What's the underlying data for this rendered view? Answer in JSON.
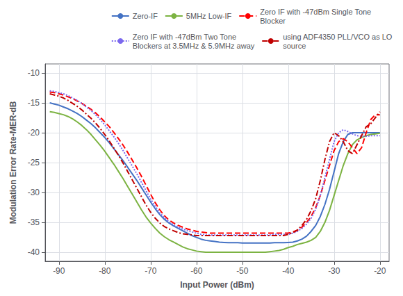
{
  "chart_data": {
    "type": "line",
    "xlabel": "Input Power (dBm)",
    "ylabel": "Modulation Error Rate-MER-dB",
    "xlim": [
      -93,
      -18
    ],
    "ylim": [
      -41.5,
      -8.5
    ],
    "xticks": [
      -90,
      -80,
      -70,
      -60,
      -50,
      -40,
      -30,
      -20
    ],
    "yticks": [
      -40,
      -35,
      -30,
      -25,
      -20,
      -15,
      -10
    ],
    "grid": true,
    "legend": "upper right",
    "x": [
      -92,
      -91,
      -90,
      -89,
      -88,
      -87,
      -86,
      -85,
      -84,
      -83,
      -82,
      -81,
      -80,
      -79,
      -78,
      -77,
      -76,
      -75,
      -74,
      -73,
      -72,
      -71,
      -70,
      -69,
      -68,
      -67,
      -66,
      -65,
      -64,
      -63,
      -62,
      -61,
      -60,
      -59,
      -58,
      -57,
      -56,
      -55,
      -54,
      -53,
      -52,
      -51,
      -50,
      -49,
      -48,
      -47,
      -46,
      -45,
      -44,
      -43,
      -42,
      -41,
      -40,
      -39,
      -38,
      -37,
      -36,
      -35,
      -34,
      -33,
      -32,
      -31,
      -30,
      -29,
      -28,
      -27,
      -26,
      -25,
      -24,
      -23,
      -22,
      -21,
      -20
    ],
    "series": [
      {
        "name": "Zero-IF",
        "color": "#4472C4",
        "line_style": "solid",
        "values": [
          -15.0,
          -15.2,
          -15.4,
          -15.7,
          -16.0,
          -16.4,
          -16.8,
          -17.3,
          -17.9,
          -18.5,
          -19.2,
          -20.0,
          -20.8,
          -21.7,
          -22.7,
          -23.7,
          -24.7,
          -25.8,
          -26.9,
          -28.0,
          -29.2,
          -30.4,
          -31.6,
          -32.7,
          -33.7,
          -34.5,
          -35.1,
          -35.6,
          -36.0,
          -36.4,
          -36.8,
          -37.2,
          -37.5,
          -37.8,
          -38.0,
          -38.1,
          -38.2,
          -38.3,
          -38.35,
          -38.4,
          -38.4,
          -38.4,
          -38.45,
          -38.45,
          -38.45,
          -38.45,
          -38.45,
          -38.45,
          -38.45,
          -38.4,
          -38.4,
          -38.4,
          -38.35,
          -38.3,
          -38.1,
          -37.8,
          -37.3,
          -36.5,
          -35.5,
          -34.0,
          -32.0,
          -29.5,
          -26.5,
          -23.5,
          -21.5,
          -20.3,
          -20.0,
          -20.0,
          -20.0,
          -20.0,
          -20.0,
          -20.0,
          -20.0
        ]
      },
      {
        "name": "5MHz Low-IF",
        "color": "#7CB342",
        "line_style": "solid",
        "values": [
          -16.5,
          -16.6,
          -16.8,
          -17.0,
          -17.3,
          -17.7,
          -18.2,
          -18.8,
          -19.5,
          -20.3,
          -21.2,
          -22.1,
          -23.1,
          -24.2,
          -25.3,
          -26.5,
          -27.7,
          -29.0,
          -30.3,
          -31.6,
          -32.9,
          -34.1,
          -35.1,
          -36.0,
          -36.8,
          -37.4,
          -37.9,
          -38.3,
          -38.7,
          -39.1,
          -39.4,
          -39.6,
          -39.8,
          -39.9,
          -40.0,
          -40.0,
          -40.0,
          -40.0,
          -40.0,
          -40.0,
          -40.0,
          -40.0,
          -40.0,
          -40.0,
          -40.0,
          -40.0,
          -40.0,
          -40.0,
          -39.9,
          -39.8,
          -39.7,
          -39.5,
          -39.2,
          -39.0,
          -38.7,
          -38.5,
          -38.3,
          -38.0,
          -37.5,
          -36.5,
          -35.0,
          -33.0,
          -30.5,
          -28.0,
          -25.5,
          -23.5,
          -22.0,
          -21.2,
          -20.8,
          -20.5,
          -20.3,
          -20.2,
          -20.1
        ]
      },
      {
        "name": "Zero IF with -47dBm Single Tone\nBlocker",
        "color": "#FF0000",
        "line_style": "dashed",
        "values": [
          -13.2,
          -13.3,
          -13.5,
          -13.7,
          -14.0,
          -14.3,
          -14.7,
          -15.1,
          -15.6,
          -16.1,
          -16.7,
          -17.4,
          -18.2,
          -19.0,
          -20.0,
          -21.0,
          -22.1,
          -23.3,
          -24.6,
          -25.9,
          -27.3,
          -28.8,
          -30.3,
          -31.7,
          -32.9,
          -33.9,
          -34.6,
          -35.1,
          -35.5,
          -35.8,
          -36.1,
          -36.3,
          -36.5,
          -36.6,
          -36.7,
          -36.8,
          -36.8,
          -36.8,
          -36.8,
          -36.8,
          -36.8,
          -36.8,
          -36.8,
          -36.8,
          -36.8,
          -36.8,
          -36.8,
          -36.8,
          -36.8,
          -36.8,
          -36.8,
          -36.8,
          -36.8,
          -36.6,
          -36.3,
          -35.8,
          -35.0,
          -34.0,
          -32.5,
          -30.5,
          -28.0,
          -25.5,
          -23.0,
          -21.5,
          -21.0,
          -21.5,
          -22.5,
          -23.5,
          -22.5,
          -20.0,
          -17.8,
          -17.0,
          -17.0
        ]
      },
      {
        "name": "Zero IF with -47dBm Two Tone\nBlockers at 3.5MHz & 5.9MHz away",
        "color": "#7B68EE",
        "line_style": "dotted",
        "values": [
          -13.0,
          -13.1,
          -13.3,
          -13.5,
          -13.8,
          -14.2,
          -14.6,
          -15.1,
          -15.7,
          -16.3,
          -17.0,
          -17.8,
          -18.7,
          -19.7,
          -20.7,
          -21.8,
          -23.0,
          -24.3,
          -25.6,
          -26.9,
          -28.3,
          -29.7,
          -31.1,
          -32.3,
          -33.4,
          -34.2,
          -34.9,
          -35.4,
          -35.8,
          -36.1,
          -36.4,
          -36.6,
          -36.8,
          -37.0,
          -37.1,
          -37.1,
          -37.1,
          -37.1,
          -37.1,
          -37.1,
          -37.1,
          -37.1,
          -37.1,
          -37.1,
          -37.1,
          -37.1,
          -37.1,
          -37.1,
          -37.1,
          -37.0,
          -37.0,
          -37.0,
          -37.0,
          -36.8,
          -36.5,
          -36.0,
          -35.3,
          -34.3,
          -32.8,
          -30.5,
          -27.5,
          -24.5,
          -21.5,
          -20.0,
          -19.5,
          -19.8,
          -20.2,
          -20.5,
          -20.6,
          -20.6,
          -20.5,
          -20.5,
          -20.5
        ]
      },
      {
        "name": "using ADF4350 PLL/VCO as LO\nsource",
        "color": "#C00000",
        "line_style": "dashdot",
        "values": [
          -13.5,
          -13.7,
          -13.9,
          -14.2,
          -14.6,
          -15.1,
          -15.6,
          -16.2,
          -16.9,
          -17.6,
          -18.4,
          -19.3,
          -20.3,
          -21.4,
          -22.6,
          -23.8,
          -25.1,
          -26.5,
          -27.9,
          -29.3,
          -30.7,
          -32.1,
          -33.3,
          -34.3,
          -35.1,
          -35.7,
          -36.1,
          -36.4,
          -36.7,
          -36.9,
          -37.0,
          -37.1,
          -37.2,
          -37.2,
          -37.2,
          -37.2,
          -37.2,
          -37.2,
          -37.2,
          -37.2,
          -37.2,
          -37.2,
          -37.2,
          -37.2,
          -37.2,
          -37.2,
          -37.2,
          -37.2,
          -37.2,
          -37.2,
          -37.2,
          -37.2,
          -37.0,
          -36.7,
          -36.3,
          -35.5,
          -34.5,
          -33.0,
          -31.0,
          -28.0,
          -24.5,
          -21.5,
          -20.0,
          -20.5,
          -21.5,
          -23.0,
          -23.5,
          -22.0,
          -20.5,
          -19.0,
          -18.5,
          -17.5,
          -16.5
        ]
      }
    ]
  }
}
